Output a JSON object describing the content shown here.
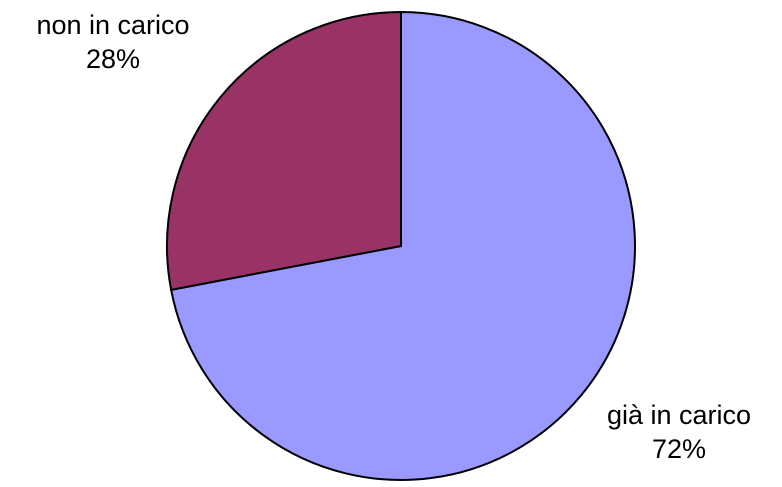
{
  "chart_data": {
    "type": "pie",
    "title": "",
    "slices": [
      {
        "label": "già in carico",
        "value": 72,
        "value_label": "72%",
        "color": "#9999ff"
      },
      {
        "label": "non in carico",
        "value": 28,
        "value_label": "28%",
        "color": "#993366"
      }
    ],
    "start_angle_deg": 0,
    "direction": "clockwise",
    "outline_color": "#000000",
    "legend": "none"
  }
}
